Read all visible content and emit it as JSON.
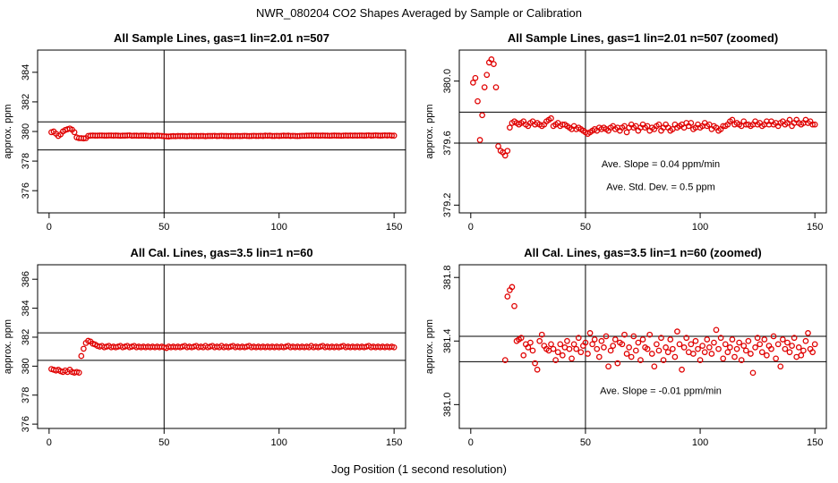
{
  "figure": {
    "title": "NWR_080204  CO2 Shapes Averaged by Sample or Calibration",
    "xlabel": "Jog Position (1 second resolution)",
    "point_color": "#e00000",
    "line_color": "#000000"
  },
  "chart_data": [
    {
      "type": "scatter",
      "title": "All Sample Lines, gas=1 lin=2.01 n=507",
      "ylabel": "approx. ppm",
      "xlim": [
        -5,
        155
      ],
      "ylim": [
        374.5,
        385.5
      ],
      "xticks": [
        0,
        50,
        100,
        150
      ],
      "yticks": [
        376,
        378,
        380,
        382,
        384
      ],
      "hlines": [
        378.75,
        380.65
      ],
      "vline": 50,
      "annotations": [],
      "x": [
        1,
        2,
        3,
        4,
        5,
        6,
        7,
        8,
        9,
        10,
        11,
        12,
        13,
        14,
        15,
        16,
        17,
        18,
        19,
        20,
        21,
        22,
        23,
        24,
        25,
        26,
        27,
        28,
        29,
        30,
        31,
        32,
        33,
        34,
        35,
        36,
        37,
        38,
        39,
        40,
        41,
        42,
        43,
        44,
        45,
        46,
        47,
        48,
        49,
        50,
        51,
        52,
        53,
        54,
        55,
        56,
        57,
        58,
        59,
        60,
        61,
        62,
        63,
        64,
        65,
        66,
        67,
        68,
        69,
        70,
        71,
        72,
        73,
        74,
        75,
        76,
        77,
        78,
        79,
        80,
        81,
        82,
        83,
        84,
        85,
        86,
        87,
        88,
        89,
        90,
        91,
        92,
        93,
        94,
        95,
        96,
        97,
        98,
        99,
        100,
        101,
        102,
        103,
        104,
        105,
        106,
        107,
        108,
        109,
        110,
        111,
        112,
        113,
        114,
        115,
        116,
        117,
        118,
        119,
        120,
        121,
        122,
        123,
        124,
        125,
        126,
        127,
        128,
        129,
        130,
        131,
        132,
        133,
        134,
        135,
        136,
        137,
        138,
        139,
        140,
        141,
        142,
        143,
        144,
        145,
        146,
        147,
        148,
        149,
        150
      ],
      "y": [
        379.95,
        380.0,
        379.85,
        379.7,
        379.8,
        380.0,
        380.1,
        380.15,
        380.2,
        380.12,
        379.95,
        379.6,
        379.55,
        379.55,
        379.53,
        379.55,
        379.7,
        379.72,
        379.73,
        379.72,
        379.72,
        379.73,
        379.73,
        379.72,
        379.72,
        379.73,
        379.73,
        379.72,
        379.73,
        379.72,
        379.71,
        379.72,
        379.72,
        379.73,
        379.74,
        379.71,
        379.72,
        379.72,
        379.71,
        379.72,
        379.72,
        379.72,
        379.71,
        379.7,
        379.72,
        379.7,
        379.72,
        379.71,
        379.7,
        379.68,
        379.67,
        379.66,
        379.68,
        379.69,
        379.68,
        379.7,
        379.69,
        379.7,
        379.69,
        379.68,
        379.7,
        379.7,
        379.69,
        379.7,
        379.69,
        379.7,
        379.7,
        379.68,
        379.7,
        379.7,
        379.7,
        379.71,
        379.69,
        379.7,
        379.71,
        379.7,
        379.7,
        379.69,
        379.7,
        379.69,
        379.7,
        379.7,
        379.69,
        379.7,
        379.71,
        379.7,
        379.69,
        379.7,
        379.71,
        379.7,
        379.7,
        379.71,
        379.7,
        379.72,
        379.71,
        379.72,
        379.7,
        379.7,
        379.71,
        379.7,
        379.71,
        379.72,
        379.71,
        379.72,
        379.7,
        379.71,
        379.7,
        379.69,
        379.7,
        379.71,
        379.71,
        379.72,
        379.72,
        379.73,
        379.72,
        379.73,
        379.72,
        379.72,
        379.73,
        379.72,
        379.72,
        379.71,
        379.72,
        379.73,
        379.72,
        379.72,
        379.71,
        379.72,
        379.73,
        379.72,
        379.73,
        379.72,
        379.73,
        379.72,
        379.73,
        379.73,
        379.72,
        379.73,
        379.74,
        379.72,
        379.73,
        379.74,
        379.73,
        379.72,
        379.73,
        379.74,
        379.73,
        379.74,
        379.72,
        379.72
      ]
    },
    {
      "type": "scatter",
      "title": "All Sample Lines, gas=1 lin=2.01 n=507 (zoomed)",
      "ylabel": "approx. ppm",
      "xlim": [
        -5,
        155
      ],
      "ylim": [
        379.15,
        380.2
      ],
      "xticks": [
        0,
        50,
        100,
        150
      ],
      "yticks": [
        379.2,
        379.6,
        380.0
      ],
      "hlines": [
        379.8,
        379.6
      ],
      "vline": 50,
      "annotations": [
        "Ave. Slope =  0.04  ppm/min",
        "Ave. Std. Dev. =  0.5  ppm"
      ],
      "x": [
        1,
        2,
        3,
        4,
        5,
        6,
        7,
        8,
        9,
        10,
        11,
        12,
        13,
        14,
        15,
        16,
        17,
        18,
        19,
        20,
        21,
        22,
        23,
        24,
        25,
        26,
        27,
        28,
        29,
        30,
        31,
        32,
        33,
        34,
        35,
        36,
        37,
        38,
        39,
        40,
        41,
        42,
        43,
        44,
        45,
        46,
        47,
        48,
        49,
        50,
        51,
        52,
        53,
        54,
        55,
        56,
        57,
        58,
        59,
        60,
        61,
        62,
        63,
        64,
        65,
        66,
        67,
        68,
        69,
        70,
        71,
        72,
        73,
        74,
        75,
        76,
        77,
        78,
        79,
        80,
        81,
        82,
        83,
        84,
        85,
        86,
        87,
        88,
        89,
        90,
        91,
        92,
        93,
        94,
        95,
        96,
        97,
        98,
        99,
        100,
        101,
        102,
        103,
        104,
        105,
        106,
        107,
        108,
        109,
        110,
        111,
        112,
        113,
        114,
        115,
        116,
        117,
        118,
        119,
        120,
        121,
        122,
        123,
        124,
        125,
        126,
        127,
        128,
        129,
        130,
        131,
        132,
        133,
        134,
        135,
        136,
        137,
        138,
        139,
        140,
        141,
        142,
        143,
        144,
        145,
        146,
        147,
        148,
        149,
        150
      ],
      "y": [
        379.99,
        380.02,
        379.87,
        379.62,
        379.78,
        379.96,
        380.04,
        380.12,
        380.14,
        380.11,
        379.96,
        379.58,
        379.55,
        379.54,
        379.52,
        379.55,
        379.7,
        379.73,
        379.74,
        379.73,
        379.72,
        379.73,
        379.74,
        379.72,
        379.71,
        379.73,
        379.74,
        379.72,
        379.73,
        379.72,
        379.71,
        379.72,
        379.74,
        379.75,
        379.76,
        379.71,
        379.72,
        379.73,
        379.71,
        379.72,
        379.72,
        379.71,
        379.7,
        379.69,
        379.71,
        379.69,
        379.7,
        379.69,
        379.68,
        379.67,
        379.66,
        379.67,
        379.68,
        379.69,
        379.68,
        379.7,
        379.69,
        379.7,
        379.69,
        379.68,
        379.7,
        379.71,
        379.69,
        379.7,
        379.68,
        379.7,
        379.71,
        379.67,
        379.7,
        379.72,
        379.7,
        379.71,
        379.68,
        379.7,
        379.72,
        379.7,
        379.71,
        379.68,
        379.7,
        379.69,
        379.71,
        379.72,
        379.68,
        379.7,
        379.72,
        379.7,
        379.68,
        379.69,
        379.72,
        379.7,
        379.71,
        379.72,
        379.7,
        379.73,
        379.71,
        379.73,
        379.69,
        379.7,
        379.72,
        379.7,
        379.71,
        379.73,
        379.71,
        379.72,
        379.69,
        379.71,
        379.7,
        379.68,
        379.69,
        379.71,
        379.71,
        379.72,
        379.74,
        379.75,
        379.72,
        379.73,
        379.72,
        379.71,
        379.74,
        379.72,
        379.72,
        379.71,
        379.72,
        379.74,
        379.72,
        379.73,
        379.71,
        379.72,
        379.74,
        379.72,
        379.74,
        379.72,
        379.73,
        379.71,
        379.73,
        379.74,
        379.72,
        379.73,
        379.75,
        379.71,
        379.73,
        379.75,
        379.73,
        379.72,
        379.73,
        379.75,
        379.73,
        379.74,
        379.72,
        379.72
      ]
    },
    {
      "type": "scatter",
      "title": "All Cal. Lines, gas=3.5 lin=1 n=60",
      "ylabel": "approx. ppm",
      "xlim": [
        -5,
        155
      ],
      "ylim": [
        375.7,
        387.0
      ],
      "xticks": [
        0,
        50,
        100,
        150
      ],
      "yticks": [
        376,
        378,
        380,
        382,
        384,
        386
      ],
      "hlines": [
        382.3,
        380.4
      ],
      "vline": 50,
      "annotations": [],
      "x": [
        1,
        2,
        3,
        4,
        5,
        6,
        7,
        8,
        9,
        10,
        11,
        12,
        13,
        14,
        15,
        16,
        17,
        18,
        19,
        20,
        21,
        22,
        23,
        24,
        25,
        26,
        27,
        28,
        29,
        30,
        31,
        32,
        33,
        34,
        35,
        36,
        37,
        38,
        39,
        40,
        41,
        42,
        43,
        44,
        45,
        46,
        47,
        48,
        49,
        50,
        51,
        52,
        53,
        54,
        55,
        56,
        57,
        58,
        59,
        60,
        61,
        62,
        63,
        64,
        65,
        66,
        67,
        68,
        69,
        70,
        71,
        72,
        73,
        74,
        75,
        76,
        77,
        78,
        79,
        80,
        81,
        82,
        83,
        84,
        85,
        86,
        87,
        88,
        89,
        90,
        91,
        92,
        93,
        94,
        95,
        96,
        97,
        98,
        99,
        100,
        101,
        102,
        103,
        104,
        105,
        106,
        107,
        108,
        109,
        110,
        111,
        112,
        113,
        114,
        115,
        116,
        117,
        118,
        119,
        120,
        121,
        122,
        123,
        124,
        125,
        126,
        127,
        128,
        129,
        130,
        131,
        132,
        133,
        134,
        135,
        136,
        137,
        138,
        139,
        140,
        141,
        142,
        143,
        144,
        145,
        146,
        147,
        148,
        149,
        150
      ],
      "y": [
        379.8,
        379.75,
        379.7,
        379.75,
        379.65,
        379.6,
        379.7,
        379.6,
        379.75,
        379.6,
        379.55,
        379.6,
        379.55,
        380.7,
        381.2,
        381.6,
        381.75,
        381.7,
        381.55,
        381.5,
        381.4,
        381.35,
        381.4,
        381.3,
        381.35,
        381.4,
        381.3,
        381.35,
        381.3,
        381.35,
        381.4,
        381.3,
        381.35,
        381.4,
        381.3,
        381.35,
        381.4,
        381.3,
        381.35,
        381.3,
        381.35,
        381.3,
        381.35,
        381.3,
        381.35,
        381.3,
        381.35,
        381.3,
        381.35,
        381.3,
        381.25,
        381.35,
        381.3,
        381.35,
        381.3,
        381.35,
        381.3,
        381.35,
        381.4,
        381.3,
        381.35,
        381.3,
        381.35,
        381.4,
        381.3,
        381.35,
        381.3,
        381.4,
        381.3,
        381.35,
        381.4,
        381.3,
        381.35,
        381.3,
        381.4,
        381.3,
        381.35,
        381.3,
        381.35,
        381.4,
        381.3,
        381.35,
        381.3,
        381.35,
        381.3,
        381.35,
        381.4,
        381.3,
        381.35,
        381.3,
        381.35,
        381.3,
        381.35,
        381.3,
        381.35,
        381.3,
        381.35,
        381.3,
        381.35,
        381.3,
        381.35,
        381.3,
        381.35,
        381.4,
        381.3,
        381.35,
        381.3,
        381.35,
        381.3,
        381.35,
        381.3,
        381.35,
        381.3,
        381.4,
        381.3,
        381.35,
        381.3,
        381.35,
        381.4,
        381.3,
        381.35,
        381.3,
        381.35,
        381.3,
        381.35,
        381.3,
        381.35,
        381.4,
        381.3,
        381.35,
        381.3,
        381.35,
        381.3,
        381.35,
        381.3,
        381.35,
        381.3,
        381.35,
        381.4,
        381.3,
        381.35,
        381.3,
        381.35,
        381.3,
        381.35,
        381.3,
        381.35,
        381.3,
        381.35,
        381.3
      ]
    },
    {
      "type": "scatter",
      "title": "All Cal. Lines, gas=3.5 lin=1 n=60 (zoomed)",
      "ylabel": "approx. ppm",
      "xlim": [
        -5,
        155
      ],
      "ylim": [
        380.85,
        381.88
      ],
      "xticks": [
        0,
        50,
        100,
        150
      ],
      "yticks": [
        381.0,
        381.4,
        381.8
      ],
      "hlines": [
        381.43,
        381.27
      ],
      "vline": 50,
      "annotations": [
        "Ave. Slope =  -0.01  ppm/min"
      ],
      "x": [
        15,
        16,
        17,
        18,
        19,
        20,
        21,
        22,
        23,
        24,
        25,
        26,
        27,
        28,
        29,
        30,
        31,
        32,
        33,
        34,
        35,
        36,
        37,
        38,
        39,
        40,
        41,
        42,
        43,
        44,
        45,
        46,
        47,
        48,
        49,
        50,
        51,
        52,
        53,
        54,
        55,
        56,
        57,
        58,
        59,
        60,
        61,
        62,
        63,
        64,
        65,
        66,
        67,
        68,
        69,
        70,
        71,
        72,
        73,
        74,
        75,
        76,
        77,
        78,
        79,
        80,
        81,
        82,
        83,
        84,
        85,
        86,
        87,
        88,
        89,
        90,
        91,
        92,
        93,
        94,
        95,
        96,
        97,
        98,
        99,
        100,
        101,
        102,
        103,
        104,
        105,
        106,
        107,
        108,
        109,
        110,
        111,
        112,
        113,
        114,
        115,
        116,
        117,
        118,
        119,
        120,
        121,
        122,
        123,
        124,
        125,
        126,
        127,
        128,
        129,
        130,
        131,
        132,
        133,
        134,
        135,
        136,
        137,
        138,
        139,
        140,
        141,
        142,
        143,
        144,
        145,
        146,
        147,
        148,
        149,
        150
      ],
      "y": [
        381.28,
        381.68,
        381.72,
        381.74,
        381.62,
        381.4,
        381.41,
        381.42,
        381.31,
        381.38,
        381.36,
        381.39,
        381.34,
        381.26,
        381.22,
        381.4,
        381.44,
        381.37,
        381.35,
        381.34,
        381.38,
        381.35,
        381.28,
        381.33,
        381.38,
        381.31,
        381.36,
        381.4,
        381.35,
        381.29,
        381.38,
        381.35,
        381.42,
        381.33,
        381.37,
        381.39,
        381.32,
        381.45,
        381.38,
        381.41,
        381.35,
        381.3,
        381.4,
        381.36,
        381.43,
        381.24,
        381.34,
        381.37,
        381.41,
        381.26,
        381.39,
        381.38,
        381.44,
        381.32,
        381.36,
        381.3,
        381.43,
        381.34,
        381.39,
        381.28,
        381.41,
        381.36,
        381.35,
        381.44,
        381.32,
        381.24,
        381.38,
        381.34,
        381.42,
        381.28,
        381.36,
        381.33,
        381.41,
        381.35,
        381.3,
        381.46,
        381.38,
        381.22,
        381.36,
        381.42,
        381.33,
        381.38,
        381.32,
        381.4,
        381.35,
        381.28,
        381.37,
        381.33,
        381.41,
        381.36,
        381.32,
        381.39,
        381.47,
        381.35,
        381.42,
        381.29,
        381.38,
        381.33,
        381.36,
        381.41,
        381.3,
        381.35,
        381.39,
        381.28,
        381.37,
        381.34,
        381.4,
        381.32,
        381.2,
        381.36,
        381.42,
        381.38,
        381.33,
        381.41,
        381.31,
        381.37,
        381.35,
        381.43,
        381.29,
        381.38,
        381.24,
        381.41,
        381.35,
        381.39,
        381.33,
        381.37,
        381.42,
        381.3,
        381.36,
        381.31,
        381.34,
        381.4,
        381.45,
        381.35,
        381.33,
        381.38
      ]
    }
  ]
}
